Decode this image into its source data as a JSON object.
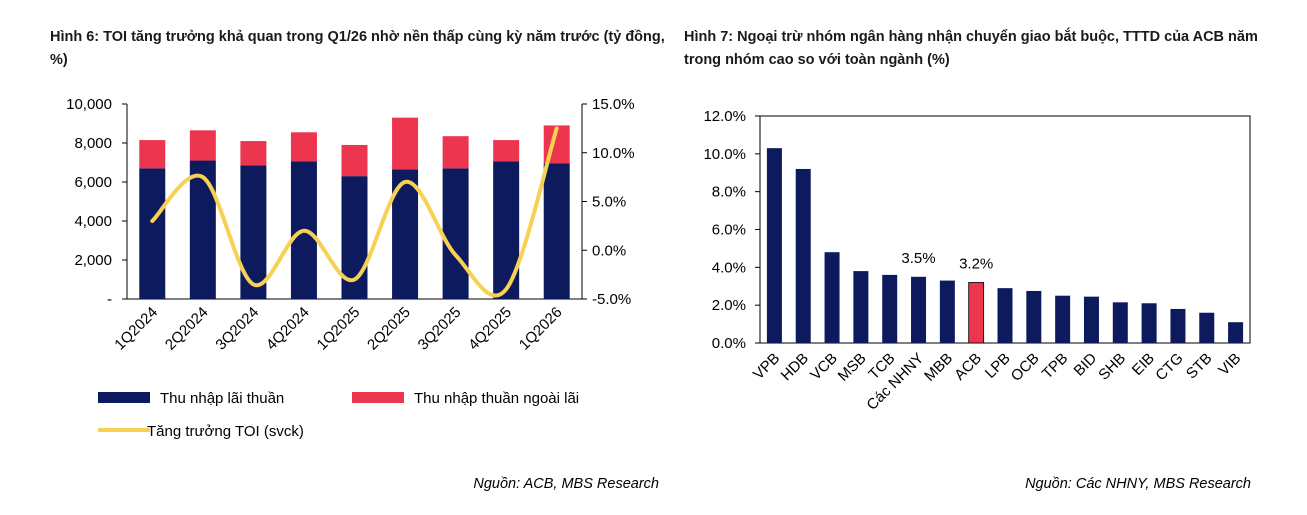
{
  "left_panel": {
    "title": "Hình 6: TOI tăng trưởng khả quan trong Q1/26 nhờ nền thấp cùng kỳ năm trước (tỷ đồng, %)",
    "source": "Nguồn: ACB, MBS Research"
  },
  "right_panel": {
    "title": "Hình 7: Ngoại trừ nhóm ngân hàng nhận chuyển giao bắt buộc, TTTD của ACB năm trong nhóm cao so với toàn ngành (%)",
    "source": "Nguồn: Các NHNY, MBS Research"
  },
  "colors": {
    "navy": "#0d1b5e",
    "red": "#ec3650",
    "yellow": "#f7d154"
  },
  "chart_data": [
    {
      "type": "bar",
      "stacked": true,
      "categories": [
        "1Q2024",
        "2Q2024",
        "3Q2024",
        "4Q2024",
        "1Q2025",
        "2Q2025",
        "3Q2025",
        "4Q2025",
        "1Q2026"
      ],
      "series": [
        {
          "name": "Thu nhập lãi thuần",
          "values": [
            6700,
            7100,
            6850,
            7050,
            6300,
            6650,
            6700,
            7050,
            6950
          ],
          "color": "#0d1b5e"
        },
        {
          "name": "Thu nhập thuần ngoài lãi",
          "values": [
            1450,
            1550,
            1250,
            1500,
            1600,
            2650,
            1650,
            1100,
            1950
          ],
          "color": "#ec3650"
        }
      ],
      "line_series": {
        "name": "Tăng trưởng TOI (svck)",
        "values": [
          3.0,
          7.5,
          -3.5,
          2.0,
          -3.0,
          7.0,
          -0.5,
          -4.0,
          12.5
        ],
        "color": "#f7d154"
      },
      "y_left": {
        "ticks": [
          "10,000",
          "8,000",
          "6,000",
          "4,000",
          "2,000",
          "-"
        ],
        "range": [
          0,
          10000
        ]
      },
      "y_right": {
        "ticks": [
          "15.0%",
          "10.0%",
          "5.0%",
          "0.0%",
          "-5.0%"
        ],
        "range": [
          -5,
          15
        ]
      },
      "legend": [
        "Thu nhập lãi thuần",
        "Thu nhập thuần ngoài lãi",
        "Tăng trưởng TOI (svck)"
      ]
    },
    {
      "type": "bar",
      "categories": [
        "VPB",
        "HDB",
        "VCB",
        "MSB",
        "TCB",
        "Các NHNY",
        "MBB",
        "ACB",
        "LPB",
        "OCB",
        "TPB",
        "BID",
        "SHB",
        "EIB",
        "CTG",
        "STB",
        "VIB"
      ],
      "values": [
        10.3,
        9.2,
        4.8,
        3.8,
        3.6,
        3.5,
        3.3,
        3.2,
        2.9,
        2.75,
        2.5,
        2.45,
        2.15,
        2.1,
        1.8,
        1.6,
        1.1
      ],
      "highlight": "ACB",
      "highlight_color": "#ec3650",
      "bar_color": "#0d1b5e",
      "data_labels": [
        {
          "category": "Các NHNY",
          "text": "3.5%"
        },
        {
          "category": "ACB",
          "text": "3.2%"
        }
      ],
      "y_ticks": [
        "12.0%",
        "10.0%",
        "8.0%",
        "6.0%",
        "4.0%",
        "2.0%",
        "0.0%"
      ],
      "ylim": [
        0,
        12
      ]
    }
  ]
}
